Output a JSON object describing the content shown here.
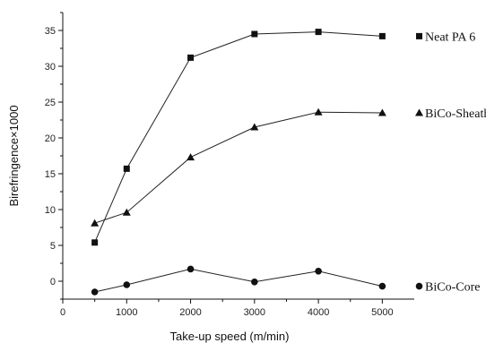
{
  "chart_data": {
    "type": "line",
    "xlabel": "Take-up speed (m/min)",
    "ylabel": "Birefringence×1000",
    "xlim": [
      0,
      5500
    ],
    "ylim": [
      -2.5,
      37.5
    ],
    "x_ticks": [
      0,
      1000,
      2000,
      3000,
      4000,
      5000
    ],
    "y_ticks": [
      0,
      5,
      10,
      15,
      20,
      25,
      30,
      35
    ],
    "grid": false,
    "legend": "inline labels at right end of each series",
    "series": [
      {
        "name": "Neat PA 6",
        "marker": "square",
        "x": [
          500,
          1000,
          2000,
          3000,
          4000,
          5000
        ],
        "y": [
          5.4,
          15.7,
          31.2,
          34.5,
          34.8,
          34.2
        ]
      },
      {
        "name": "BiCo-Sheath",
        "marker": "triangle",
        "x": [
          500,
          1000,
          2000,
          3000,
          4000,
          5000
        ],
        "y": [
          8.1,
          9.6,
          17.3,
          21.5,
          23.6,
          23.5
        ]
      },
      {
        "name": "BiCo-Core",
        "marker": "circle",
        "x": [
          500,
          1000,
          2000,
          3000,
          4000,
          5000
        ],
        "y": [
          -1.5,
          -0.5,
          1.7,
          -0.1,
          1.4,
          -0.7
        ]
      }
    ]
  }
}
